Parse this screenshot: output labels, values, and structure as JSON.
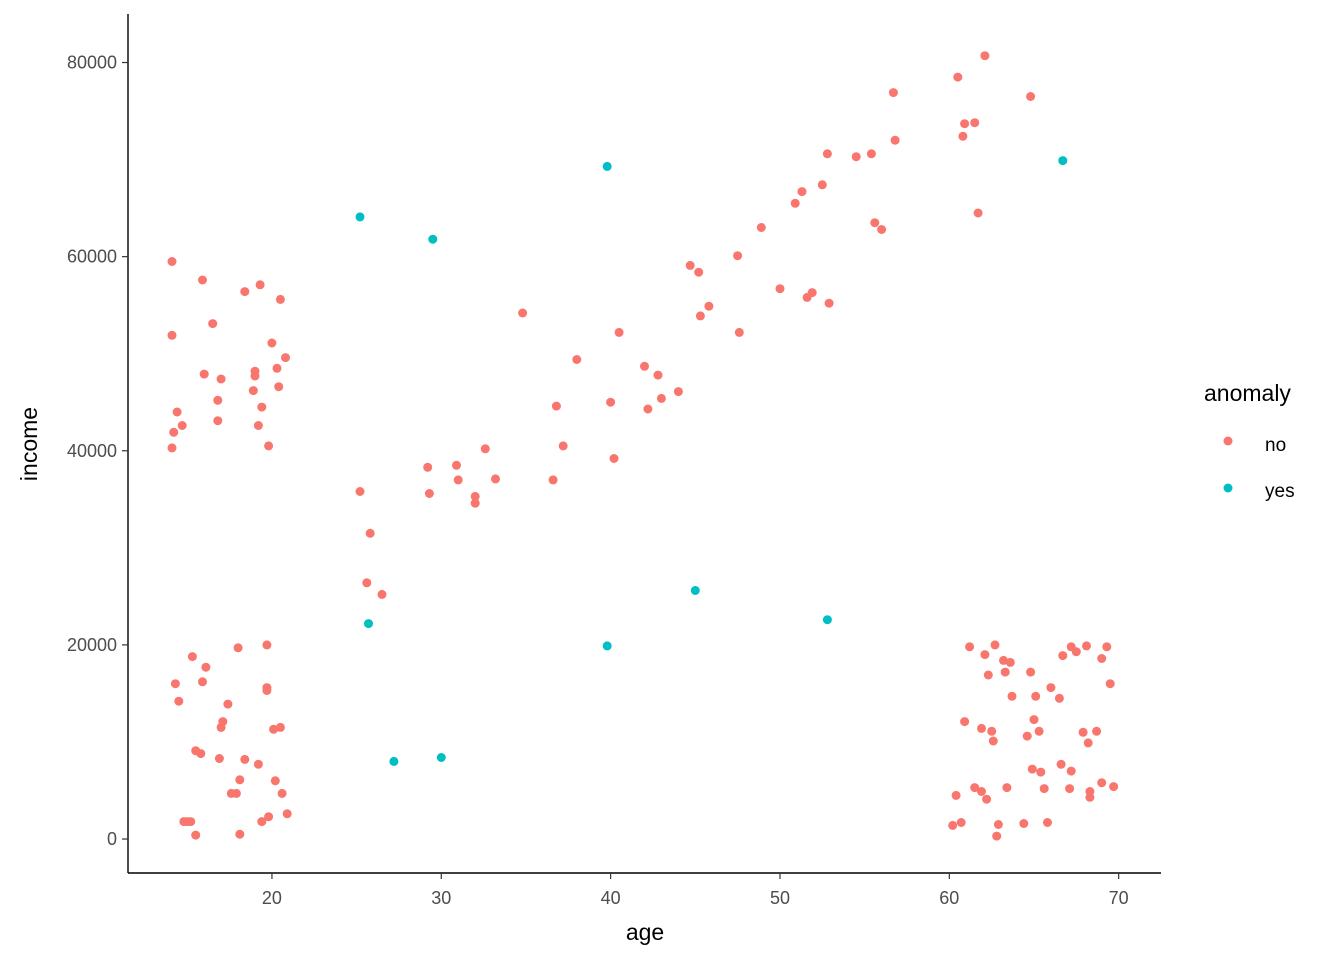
{
  "chart_data": {
    "type": "scatter",
    "xlabel": "age",
    "ylabel": "income",
    "xlim": [
      11.5,
      72.5
    ],
    "ylim": [
      -3500,
      85000
    ],
    "x_ticks": [
      20,
      30,
      40,
      50,
      60,
      70
    ],
    "y_ticks": [
      0,
      20000,
      40000,
      60000,
      80000
    ],
    "grid": false,
    "legend": {
      "title": "anomaly",
      "placement": "right",
      "entries": [
        {
          "label": "no",
          "color": "#F8766D"
        },
        {
          "label": "yes",
          "color": "#00BFC4"
        }
      ]
    },
    "series": [
      {
        "name": "no",
        "color": "#F8766D",
        "points": [
          [
            14.1,
            59500
          ],
          [
            14.1,
            51900
          ],
          [
            14.4,
            44000
          ],
          [
            14.7,
            42600
          ],
          [
            14.2,
            41900
          ],
          [
            14.1,
            40300
          ],
          [
            15.9,
            57600
          ],
          [
            16.0,
            47900
          ],
          [
            16.5,
            53100
          ],
          [
            16.8,
            45200
          ],
          [
            17.0,
            47400
          ],
          [
            16.8,
            43100
          ],
          [
            18.4,
            56400
          ],
          [
            18.9,
            46200
          ],
          [
            19.0,
            48200
          ],
          [
            19.0,
            47700
          ],
          [
            19.2,
            42600
          ],
          [
            19.3,
            57100
          ],
          [
            19.4,
            44500
          ],
          [
            19.8,
            40500
          ],
          [
            20.0,
            51100
          ],
          [
            20.3,
            48500
          ],
          [
            20.4,
            46600
          ],
          [
            20.5,
            55600
          ],
          [
            20.8,
            49600
          ],
          [
            14.3,
            16000
          ],
          [
            14.5,
            14200
          ],
          [
            14.8,
            1800
          ],
          [
            15.0,
            1800
          ],
          [
            15.2,
            1800
          ],
          [
            15.3,
            18800
          ],
          [
            15.5,
            9100
          ],
          [
            15.5,
            400
          ],
          [
            15.8,
            8800
          ],
          [
            15.9,
            16200
          ],
          [
            16.1,
            17700
          ],
          [
            16.9,
            8300
          ],
          [
            17.0,
            11500
          ],
          [
            17.1,
            12100
          ],
          [
            17.4,
            13900
          ],
          [
            17.6,
            4700
          ],
          [
            17.9,
            4700
          ],
          [
            18.0,
            19700
          ],
          [
            18.1,
            6100
          ],
          [
            18.1,
            500
          ],
          [
            18.4,
            8200
          ],
          [
            19.2,
            7700
          ],
          [
            19.4,
            1800
          ],
          [
            19.7,
            20000
          ],
          [
            19.7,
            15600
          ],
          [
            19.7,
            15300
          ],
          [
            19.8,
            2300
          ],
          [
            20.1,
            11300
          ],
          [
            20.2,
            6000
          ],
          [
            20.5,
            11500
          ],
          [
            20.6,
            4700
          ],
          [
            20.9,
            2600
          ],
          [
            25.2,
            35800
          ],
          [
            25.6,
            26400
          ],
          [
            25.8,
            31500
          ],
          [
            26.5,
            25200
          ],
          [
            29.2,
            38300
          ],
          [
            29.3,
            35600
          ],
          [
            30.9,
            38500
          ],
          [
            31.0,
            37000
          ],
          [
            32.0,
            35300
          ],
          [
            32.0,
            34600
          ],
          [
            32.6,
            40200
          ],
          [
            33.2,
            37100
          ],
          [
            34.8,
            54200
          ],
          [
            36.6,
            37000
          ],
          [
            36.8,
            44600
          ],
          [
            37.2,
            40500
          ],
          [
            38.0,
            49400
          ],
          [
            40.0,
            45000
          ],
          [
            40.2,
            39200
          ],
          [
            40.5,
            52200
          ],
          [
            42.0,
            48700
          ],
          [
            42.2,
            44300
          ],
          [
            42.8,
            47800
          ],
          [
            43.0,
            45400
          ],
          [
            44.0,
            46100
          ],
          [
            44.7,
            59100
          ],
          [
            45.2,
            58400
          ],
          [
            45.3,
            53900
          ],
          [
            45.8,
            54900
          ],
          [
            47.5,
            60100
          ],
          [
            47.6,
            52200
          ],
          [
            48.9,
            63000
          ],
          [
            50.0,
            56700
          ],
          [
            50.9,
            65500
          ],
          [
            51.3,
            66700
          ],
          [
            51.6,
            55800
          ],
          [
            51.9,
            56300
          ],
          [
            52.5,
            67400
          ],
          [
            52.8,
            70600
          ],
          [
            52.9,
            55200
          ],
          [
            54.5,
            70300
          ],
          [
            55.4,
            70600
          ],
          [
            55.6,
            63500
          ],
          [
            56.0,
            62800
          ],
          [
            56.7,
            76900
          ],
          [
            56.8,
            72000
          ],
          [
            60.5,
            78500
          ],
          [
            60.8,
            72400
          ],
          [
            60.9,
            73700
          ],
          [
            61.5,
            73800
          ],
          [
            61.7,
            64500
          ],
          [
            62.1,
            80700
          ],
          [
            64.8,
            76500
          ],
          [
            60.2,
            1400
          ],
          [
            60.4,
            4500
          ],
          [
            60.7,
            1700
          ],
          [
            60.9,
            12100
          ],
          [
            61.2,
            19800
          ],
          [
            61.5,
            5300
          ],
          [
            61.9,
            11400
          ],
          [
            61.9,
            4900
          ],
          [
            62.1,
            19000
          ],
          [
            62.2,
            4100
          ],
          [
            62.3,
            16900
          ],
          [
            62.5,
            11100
          ],
          [
            62.6,
            10100
          ],
          [
            62.7,
            20000
          ],
          [
            62.8,
            300
          ],
          [
            62.9,
            1500
          ],
          [
            63.2,
            18400
          ],
          [
            63.3,
            17200
          ],
          [
            63.4,
            5300
          ],
          [
            63.6,
            18200
          ],
          [
            63.7,
            14700
          ],
          [
            64.4,
            1600
          ],
          [
            64.6,
            10600
          ],
          [
            64.8,
            17200
          ],
          [
            64.9,
            7200
          ],
          [
            65.0,
            12300
          ],
          [
            65.1,
            14700
          ],
          [
            65.3,
            11100
          ],
          [
            65.4,
            6900
          ],
          [
            65.6,
            5200
          ],
          [
            65.8,
            1700
          ],
          [
            66.0,
            15600
          ],
          [
            66.5,
            14500
          ],
          [
            66.6,
            7700
          ],
          [
            66.7,
            18900
          ],
          [
            67.1,
            5200
          ],
          [
            67.2,
            19800
          ],
          [
            67.2,
            7000
          ],
          [
            67.5,
            19300
          ],
          [
            67.9,
            11000
          ],
          [
            68.1,
            19900
          ],
          [
            68.2,
            9900
          ],
          [
            68.3,
            4300
          ],
          [
            68.3,
            4900
          ],
          [
            68.7,
            11100
          ],
          [
            69.0,
            18600
          ],
          [
            69.0,
            5800
          ],
          [
            69.3,
            19800
          ],
          [
            69.5,
            16000
          ],
          [
            69.7,
            5400
          ]
        ]
      },
      {
        "name": "yes",
        "color": "#00BFC4",
        "points": [
          [
            25.2,
            64100
          ],
          [
            29.5,
            61800
          ],
          [
            39.8,
            69300
          ],
          [
            66.7,
            69900
          ],
          [
            25.7,
            22200
          ],
          [
            27.2,
            8000
          ],
          [
            30.0,
            8400
          ],
          [
            39.8,
            19900
          ],
          [
            45.0,
            25600
          ],
          [
            52.8,
            22600
          ]
        ]
      }
    ]
  }
}
